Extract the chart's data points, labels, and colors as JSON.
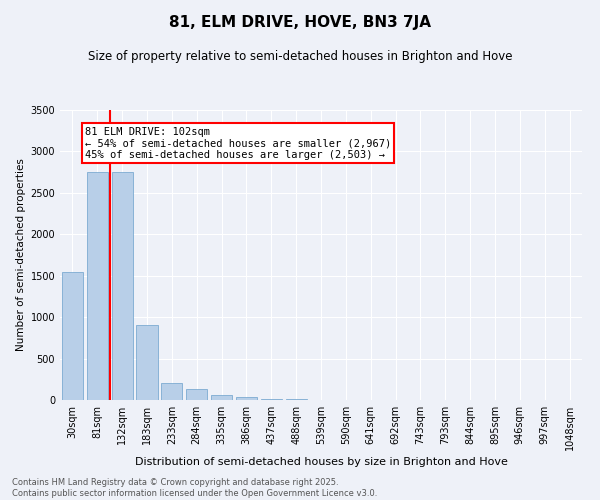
{
  "title": "81, ELM DRIVE, HOVE, BN3 7JA",
  "subtitle": "Size of property relative to semi-detached houses in Brighton and Hove",
  "xlabel": "Distribution of semi-detached houses by size in Brighton and Hove",
  "ylabel": "Number of semi-detached properties",
  "categories": [
    "30sqm",
    "81sqm",
    "132sqm",
    "183sqm",
    "233sqm",
    "284sqm",
    "335sqm",
    "386sqm",
    "437sqm",
    "488sqm",
    "539sqm",
    "590sqm",
    "641sqm",
    "692sqm",
    "743sqm",
    "793sqm",
    "844sqm",
    "895sqm",
    "946sqm",
    "997sqm",
    "1048sqm"
  ],
  "values": [
    1550,
    2750,
    2750,
    900,
    200,
    130,
    55,
    35,
    15,
    8,
    4,
    2,
    1,
    1,
    0,
    0,
    0,
    0,
    0,
    0,
    0
  ],
  "bar_color": "#b8cfe8",
  "bar_edge_color": "#6ca0cc",
  "vline_x": 1.5,
  "vline_color": "red",
  "annotation_text": "81 ELM DRIVE: 102sqm\n← 54% of semi-detached houses are smaller (2,967)\n45% of semi-detached houses are larger (2,503) →",
  "annotation_box_color": "white",
  "annotation_box_edge": "red",
  "ylim": [
    0,
    3500
  ],
  "yticks": [
    0,
    500,
    1000,
    1500,
    2000,
    2500,
    3000,
    3500
  ],
  "footer_line1": "Contains HM Land Registry data © Crown copyright and database right 2025.",
  "footer_line2": "Contains public sector information licensed under the Open Government Licence v3.0.",
  "bg_color": "#eef1f8",
  "plot_bg_color": "#eef1f8",
  "grid_color": "white",
  "title_fontsize": 11,
  "subtitle_fontsize": 8.5,
  "tick_fontsize": 7,
  "ylabel_fontsize": 7.5,
  "xlabel_fontsize": 8,
  "footer_fontsize": 6,
  "annotation_fontsize": 7.5
}
